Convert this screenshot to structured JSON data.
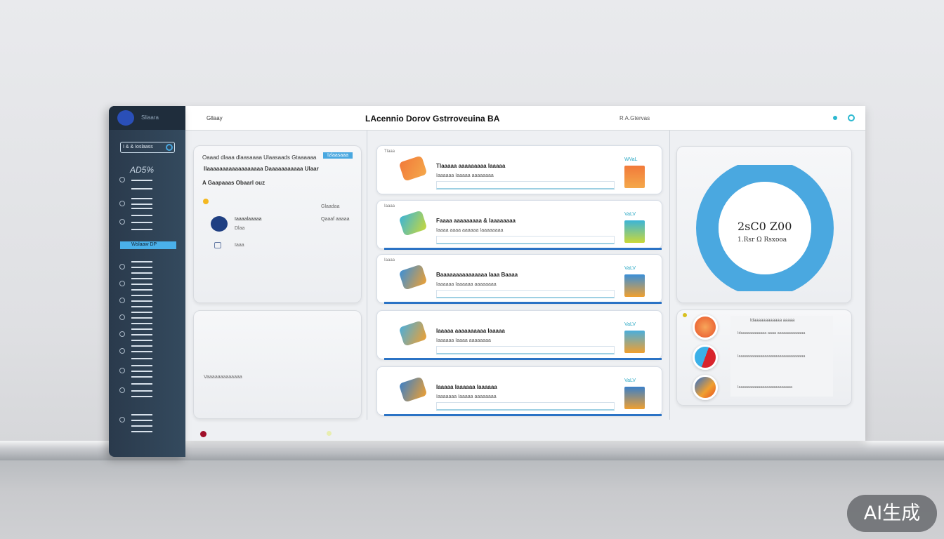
{
  "header": {
    "left_label": "Gllaay",
    "title": "LAcennio Dorov Gstrroveuina BA",
    "status": "R A.Gtervas"
  },
  "sidebar": {
    "brand": "Sliaara",
    "search": "I & & Ioslaass",
    "stat": "AD5%",
    "active_item": "Wslaaw DP"
  },
  "left_card": {
    "line1": "Oaaad dlaaa dlaasaaaa Ulaasaads Gtaaaaaa",
    "badge": "Izlaasaaa",
    "line2": "Ilaaaaaaaaaaaaaaaaaa Daaaaaaaaaaa Ulaar",
    "section": "A Gaapaaas Obaarl ouz",
    "col_label": "Glaadaa",
    "row1_text": "Iaaaalaaaaa",
    "row1_sub": "Dlaa",
    "row1_value": "Qaaaf aaaaa",
    "row2_text": "Iaaa"
  },
  "left_card2": {
    "caption": "Vaaaaaaaaaaaaa"
  },
  "list": [
    {
      "label": "Tlaaa",
      "title": "Tlaaaaa aaaaaaaaa Iaaaaa",
      "sub": "Iaaaaaa Iaaaaa aaaaaaaa",
      "tag": "WVaL",
      "color_a": "#f27a3a",
      "color_b": "#f4a84a"
    },
    {
      "label": "Iaaaa",
      "title": "Faaaa aaaaaaaaa & Iaaaaaaaa",
      "sub": "Iaaaa aaaa aaaaaa Iaaaaaaaa",
      "tag": "VaLV",
      "color_a": "#3bb4d8",
      "color_b": "#c9d83a"
    },
    {
      "label": "Iaaaa",
      "title": "Baaaaaaaaaaaaaaa Iaaa Baaaa",
      "sub": "Iaaaaaa Iaaaaaa aaaaaaaa",
      "tag": "VaLV",
      "color_a": "#3a8fd8",
      "color_b": "#f0a030"
    },
    {
      "label": "",
      "title": "Iaaaaa aaaaaaaaaa Iaaaaa",
      "sub": "Iaaaaaa Iaaaa aaaaaaaa",
      "tag": "VaLV",
      "color_a": "#4aaedc",
      "color_b": "#f0a030"
    },
    {
      "label": "",
      "title": "Iaaaaa Iaaaaaa Iaaaaaa",
      "sub": "Iaaaaaaa Iaaaaa aaaaaaaa",
      "tag": "VaLV",
      "color_a": "#3a7fc8",
      "color_b": "#f0a030"
    }
  ],
  "donut": {
    "value": "2sC0 Z00",
    "caption": "1.Rsr  Ω Rsxooa",
    "progress_percent": 100,
    "color": "#4aa8e0"
  },
  "right_list": {
    "heading": "Idaaaaaaaaaaaa aaaaa",
    "rows": [
      "Idaaaaaaaaaaaa aaaa aaaaaaaaaaaaa",
      "Iaaaaaaaaaaaaaaaaaaaaaaaaaaaaaaa",
      "Iaaaaaaaaaaaaaaaaaaaaaaaaa"
    ]
  },
  "watermark": "AI生成"
}
